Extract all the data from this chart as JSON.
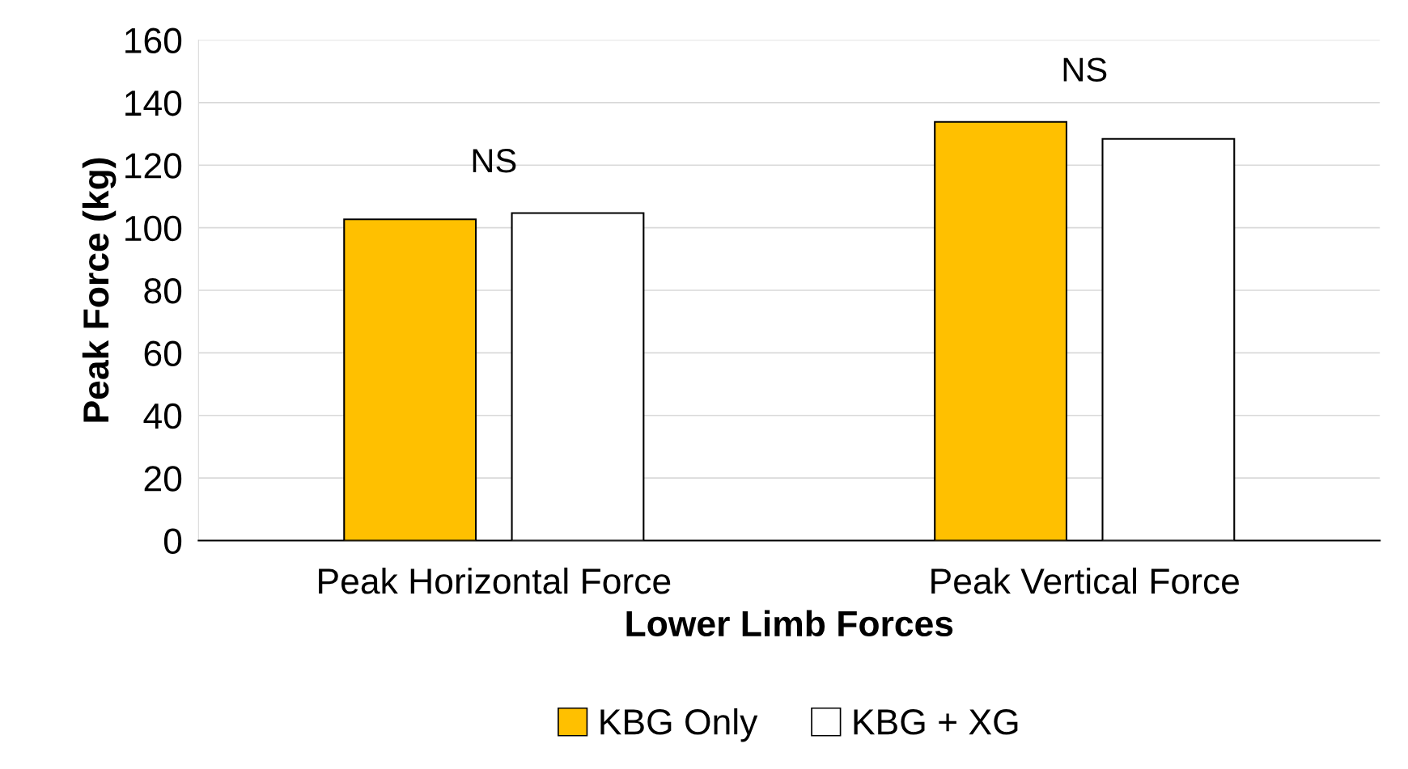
{
  "chart_data": {
    "type": "bar",
    "xlabel": "Lower Limb Forces",
    "ylabel": "Peak Force (kg)",
    "categories": [
      "Peak Horizontal Force",
      "Peak Vertical Force"
    ],
    "series": [
      {
        "name": "KBG Only",
        "color": "#ffc000",
        "values": [
          102.7,
          133.8
        ]
      },
      {
        "name": "KBG + XG",
        "color": "#ffffff",
        "values": [
          104.7,
          128.4
        ]
      }
    ],
    "ylim": [
      0,
      160
    ],
    "yticks": [
      0,
      20,
      40,
      60,
      80,
      100,
      120,
      140,
      160
    ],
    "grid": "y",
    "legend": "bottom",
    "annotations": [
      "NS",
      "NS"
    ]
  }
}
